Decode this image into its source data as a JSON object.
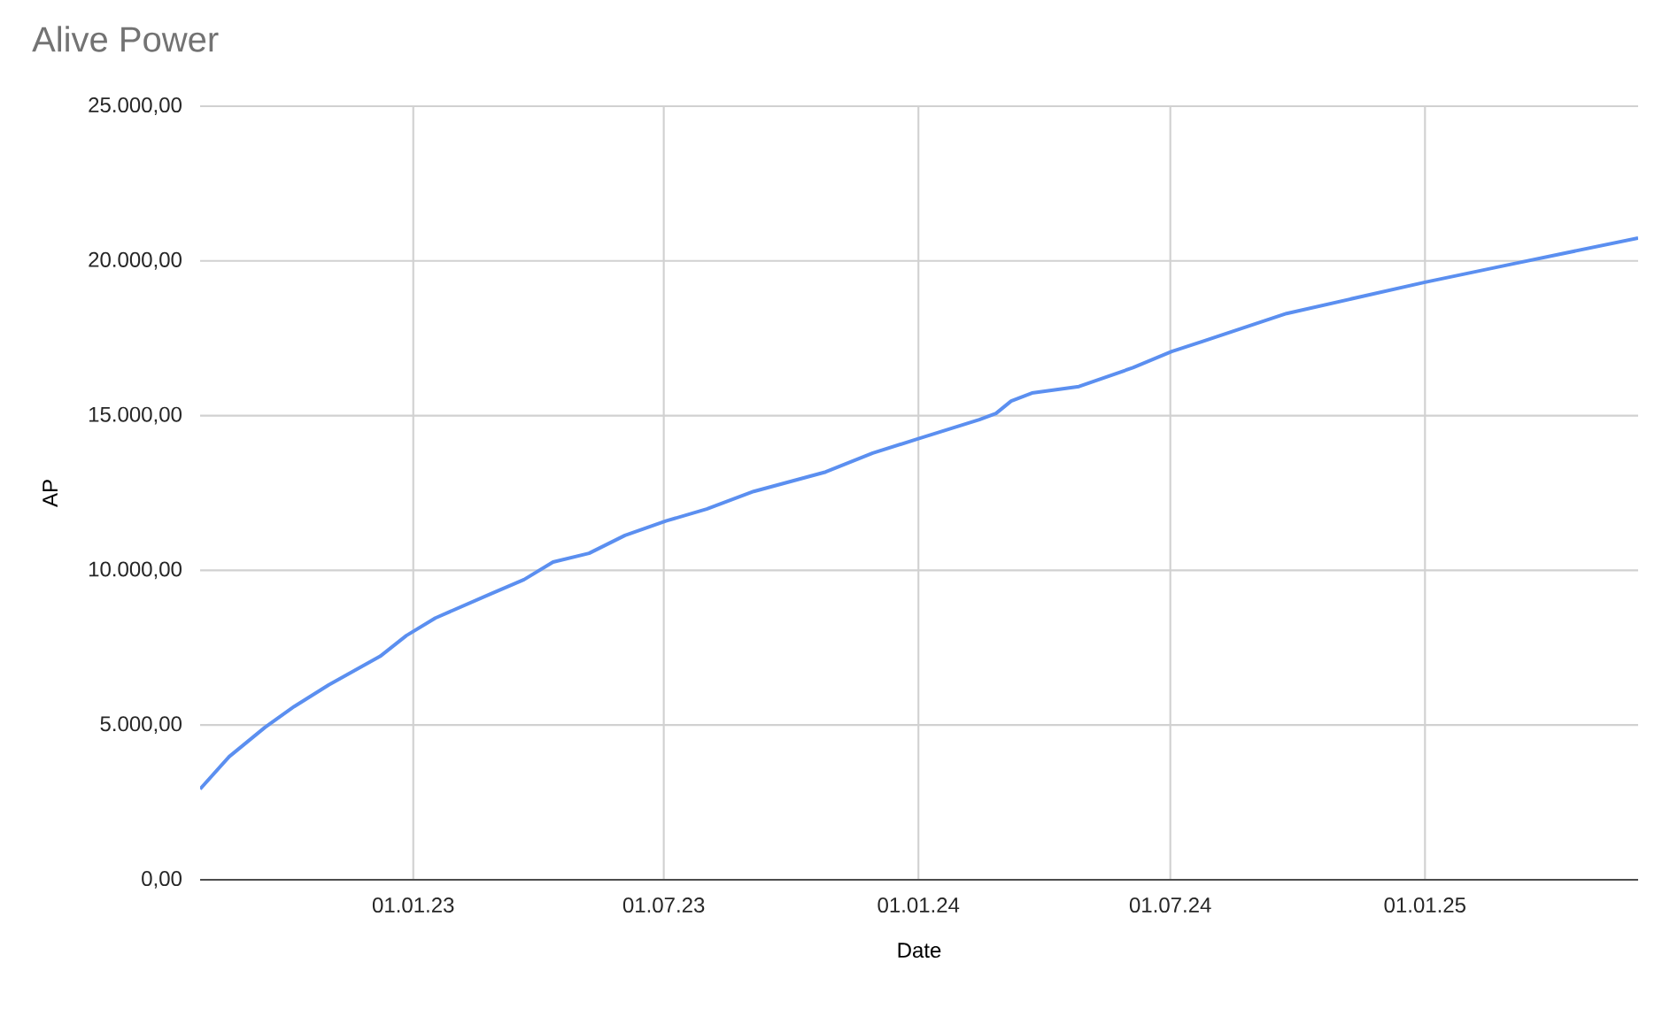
{
  "chart_data": {
    "type": "line",
    "title": "Alive Power",
    "xlabel": "Date",
    "ylabel": "AP",
    "x": [
      "2022-07-31",
      "2022-08-21",
      "2022-09-16",
      "2022-10-07",
      "2022-11-01",
      "2022-12-08",
      "2022-12-27",
      "2023-01-17",
      "2023-02-25",
      "2023-03-22",
      "2023-04-12",
      "2023-05-08",
      "2023-06-03",
      "2023-07-03",
      "2023-08-01",
      "2023-09-04",
      "2023-10-26",
      "2023-11-29",
      "2024-01-02",
      "2024-02-14",
      "2024-02-26",
      "2024-03-08",
      "2024-03-23",
      "2024-04-26",
      "2024-06-04",
      "2024-07-02",
      "2024-07-25",
      "2024-09-23",
      "2025-01-01",
      "2025-03-04",
      "2025-06-04"
    ],
    "series": [
      {
        "color": "#5b8ff0",
        "values": [
          2930,
          3980,
          4930,
          5600,
          6300,
          7220,
          7890,
          8460,
          9220,
          9700,
          10270,
          10550,
          11130,
          11600,
          11980,
          12550,
          13180,
          13790,
          14270,
          14870,
          15070,
          15470,
          15730,
          15940,
          16550,
          17070,
          17410,
          18300,
          19310,
          19890,
          20740
        ]
      }
    ],
    "xlim": [
      "2022-07-31",
      "2025-06-04"
    ],
    "xticks": [
      {
        "value": "2023-01-01",
        "label": "01.01.23"
      },
      {
        "value": "2023-07-01",
        "label": "01.07.23"
      },
      {
        "value": "2024-01-01",
        "label": "01.01.24"
      },
      {
        "value": "2024-07-01",
        "label": "01.07.24"
      },
      {
        "value": "2025-01-01",
        "label": "01.01.25"
      }
    ],
    "ylim": [
      0,
      25000
    ],
    "yticks": [
      {
        "value": 0,
        "label": "0,00"
      },
      {
        "value": 5000,
        "label": "5.000,00"
      },
      {
        "value": 10000,
        "label": "10.000,00"
      },
      {
        "value": 15000,
        "label": "15.000,00"
      },
      {
        "value": 20000,
        "label": "20.000,00"
      },
      {
        "value": 25000,
        "label": "25.000,00"
      }
    ],
    "grid": true,
    "marker": "none",
    "line_style": "solid"
  }
}
